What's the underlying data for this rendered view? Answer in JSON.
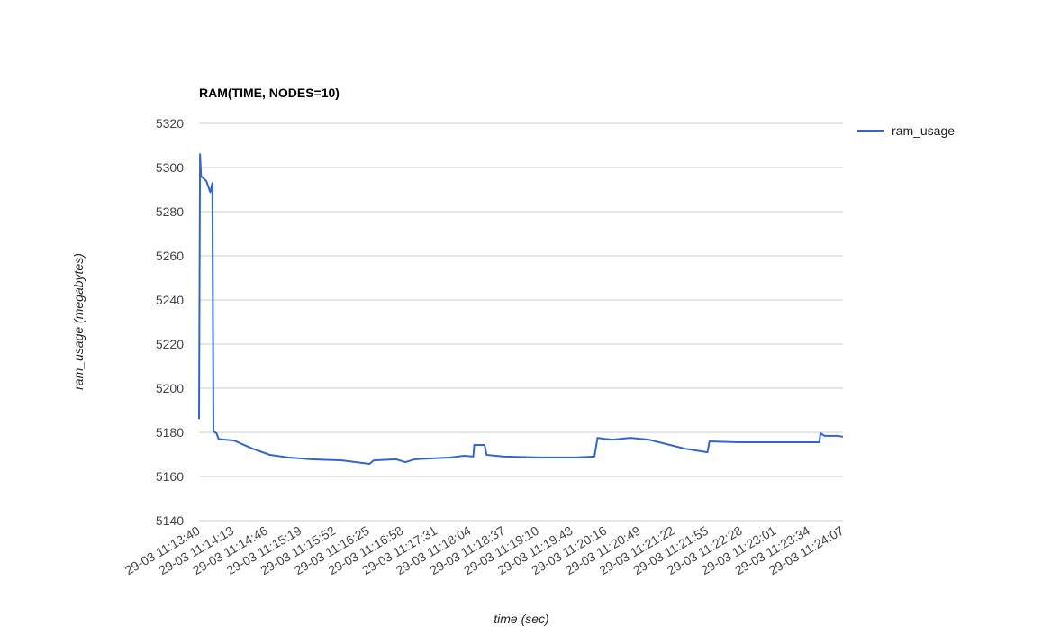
{
  "chart_data": {
    "type": "line",
    "title": "RAM(TIME, NODES=10)",
    "xlabel": "time (sec)",
    "ylabel": "ram_usage (megabytes)",
    "ylim": [
      5140,
      5320
    ],
    "yticks": [
      "5140",
      "5160",
      "5180",
      "5200",
      "5220",
      "5240",
      "5260",
      "5280",
      "5300",
      "5320"
    ],
    "xticks": [
      "29-03 11:13:40",
      "29-03 11:14:13",
      "29-03 11:14:46",
      "29-03 11:15:19",
      "29-03 11:15:52",
      "29-03 11:16:25",
      "29-03 11:16:58",
      "29-03 11:17:31",
      "29-03 11:18:04",
      "29-03 11:18:37",
      "29-03 11:19:10",
      "29-03 11:19:43",
      "29-03 11:20:16",
      "29-03 11:20:49",
      "29-03 11:21:22",
      "29-03 11:21:55",
      "29-03 11:22:28",
      "29-03 11:23:01",
      "29-03 11:23:34",
      "29-03 11:24:07"
    ],
    "xlim": [
      "11:13:40",
      "11:24:07"
    ],
    "grid": true,
    "legend_position": "right",
    "series": [
      {
        "name": "ram_usage",
        "color": "#3366cc",
        "x": [
          "11:13:40",
          "11:13:41",
          "11:13:42",
          "11:13:47",
          "11:13:50",
          "11:13:51",
          "11:13:53",
          "11:13:54",
          "11:13:57",
          "11:13:59",
          "11:14:05",
          "11:14:14",
          "11:14:32",
          "11:14:49",
          "11:15:07",
          "11:15:29",
          "11:15:59",
          "11:16:26",
          "11:16:30",
          "11:16:52",
          "11:17:01",
          "11:17:10",
          "11:17:45",
          "11:17:58",
          "11:18:07",
          "11:18:08",
          "11:18:18",
          "11:18:20",
          "11:18:37",
          "11:19:12",
          "11:19:47",
          "11:20:05",
          "11:20:08",
          "11:20:14",
          "11:20:23",
          "11:20:40",
          "11:20:58",
          "11:21:33",
          "11:21:55",
          "11:21:57",
          "11:22:25",
          "11:23:09",
          "11:23:44",
          "11:23:45",
          "11:23:49",
          "11:24:02",
          "11:24:07"
        ],
        "values": [
          5186,
          5306,
          5296,
          5294,
          5290,
          5288.8,
          5293,
          5180.4,
          5179.6,
          5177,
          5176.7,
          5176.3,
          5172.6,
          5169.8,
          5168.6,
          5167.8,
          5167.3,
          5165.7,
          5167.3,
          5167.8,
          5166.5,
          5167.8,
          5168.6,
          5169.4,
          5169,
          5174.3,
          5174.3,
          5169.8,
          5169,
          5168.6,
          5168.6,
          5169,
          5177.5,
          5177.1,
          5176.7,
          5177.5,
          5176.7,
          5172.6,
          5171,
          5175.9,
          5175.5,
          5175.5,
          5175.5,
          5179.6,
          5178.4,
          5178.4,
          5178
        ]
      }
    ]
  }
}
